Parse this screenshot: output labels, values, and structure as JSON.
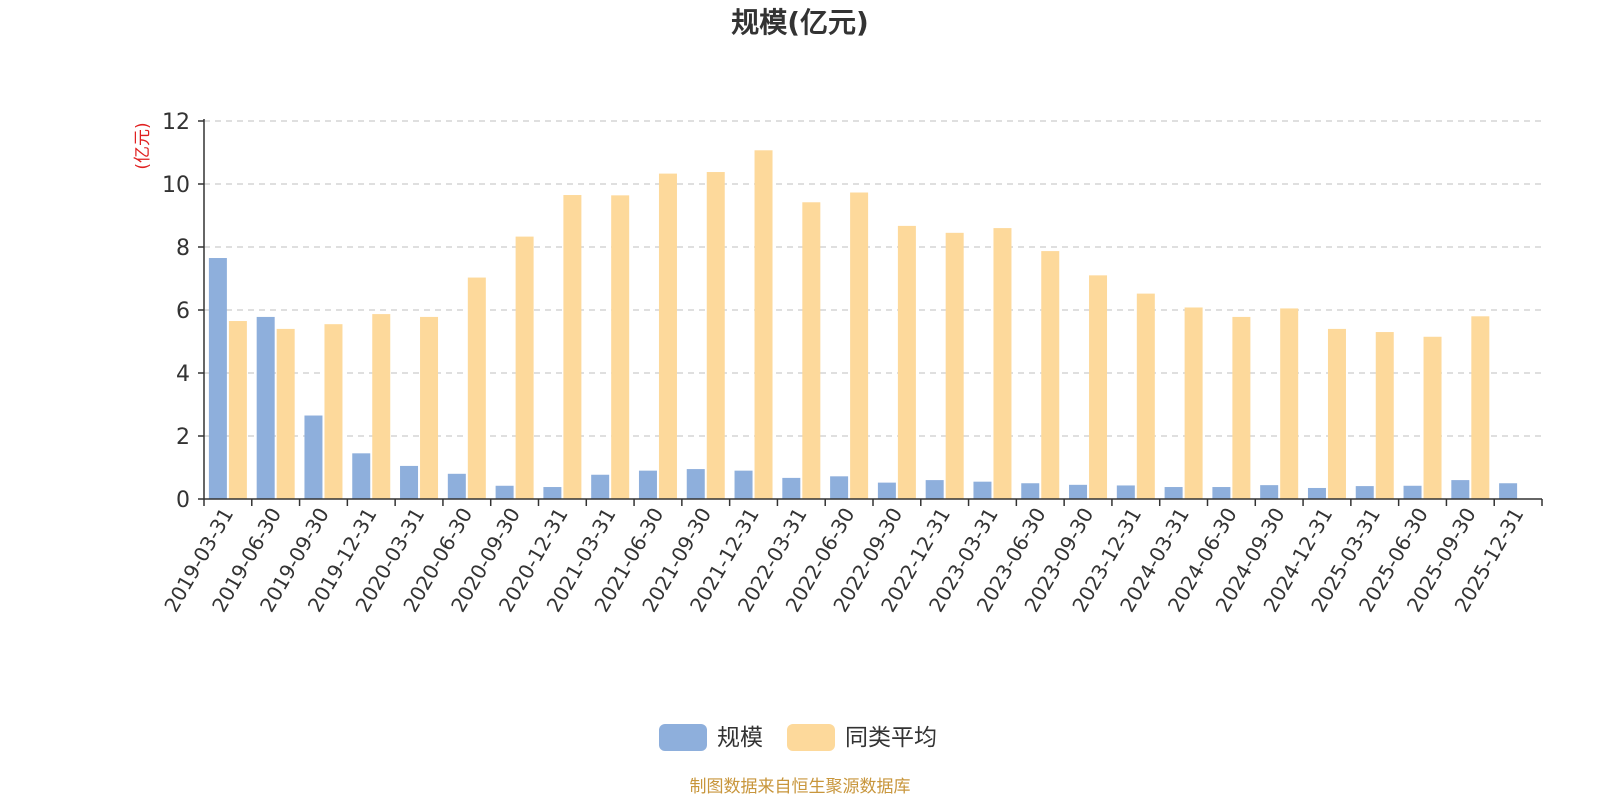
{
  "chart_data": {
    "type": "bar",
    "title": "规模(亿元)",
    "ylabel": "(亿元)",
    "xlabel": "",
    "ylim": [
      0,
      12
    ],
    "yticks": [
      0,
      2,
      4,
      6,
      8,
      10,
      12
    ],
    "grid": true,
    "legend_position": "bottom-center",
    "categories": [
      "2019-03-31",
      "2019-06-30",
      "2019-09-30",
      "2019-12-31",
      "2020-03-31",
      "2020-06-30",
      "2020-09-30",
      "2020-12-31",
      "2021-03-31",
      "2021-06-30",
      "2021-09-30",
      "2021-12-31",
      "2022-03-31",
      "2022-06-30",
      "2022-09-30",
      "2022-12-31",
      "2023-03-31",
      "2023-06-30",
      "2023-09-30",
      "2023-12-31",
      "2024-03-31",
      "2024-06-30",
      "2024-09-30",
      "2024-12-31",
      "2025-03-31",
      "2025-06-30",
      "2025-09-30",
      "2025-12-31"
    ],
    "series": [
      {
        "name": "规模",
        "color": "#8EAFDC",
        "values": [
          7.65,
          5.78,
          2.65,
          1.45,
          1.05,
          0.8,
          0.42,
          0.38,
          0.77,
          0.9,
          0.95,
          0.9,
          0.67,
          0.72,
          0.52,
          0.6,
          0.55,
          0.5,
          0.45,
          0.43,
          0.38,
          0.38,
          0.44,
          0.35,
          0.41,
          0.42,
          0.6,
          0.5
        ]
      },
      {
        "name": "同类平均",
        "color": "#FDD99B",
        "values": [
          5.65,
          5.4,
          5.55,
          5.87,
          5.78,
          7.03,
          8.33,
          9.65,
          9.64,
          10.33,
          10.38,
          11.07,
          9.42,
          9.73,
          8.67,
          8.45,
          8.6,
          7.87,
          7.1,
          6.52,
          6.08,
          5.78,
          6.05,
          5.4,
          5.3,
          5.15,
          5.8,
          null
        ]
      }
    ],
    "source_note": "制图数据来自恒生聚源数据库",
    "source_color": "#C8963C",
    "ylabel_color": "#E02020",
    "title_color": "#333333",
    "axis_color": "#333333",
    "grid_color": "#CCCCCC"
  }
}
